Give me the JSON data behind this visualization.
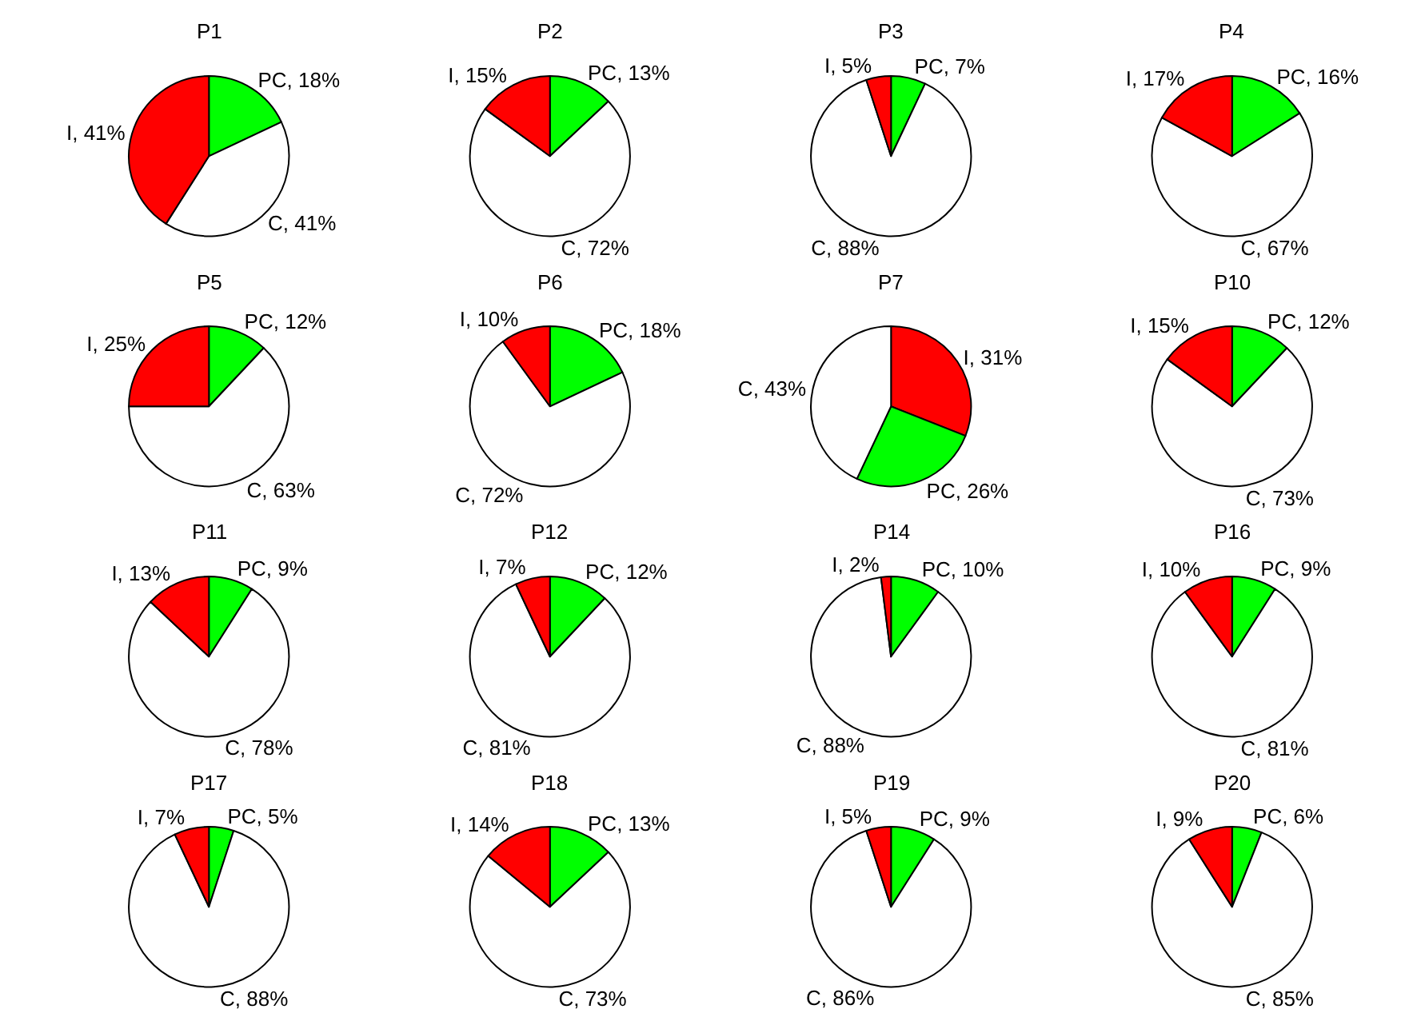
{
  "chart_data": [
    {
      "type": "pie",
      "title": "P1",
      "categories": [
        "PC",
        "C",
        "I"
      ],
      "values": [
        18,
        41,
        41
      ],
      "value_labels": [
        "18%",
        "41%",
        "41%"
      ],
      "colors": [
        "#00ff00",
        "#ffffff",
        "#ff0000"
      ]
    },
    {
      "type": "pie",
      "title": "P2",
      "categories": [
        "PC",
        "C",
        "I"
      ],
      "values": [
        13,
        72,
        15
      ],
      "value_labels": [
        "13%",
        "72%",
        "15%"
      ],
      "colors": [
        "#00ff00",
        "#ffffff",
        "#ff0000"
      ]
    },
    {
      "type": "pie",
      "title": "P3",
      "categories": [
        "PC",
        "C",
        "I"
      ],
      "values": [
        7,
        88,
        5
      ],
      "value_labels": [
        "7%",
        "88%",
        "5%"
      ],
      "colors": [
        "#00ff00",
        "#ffffff",
        "#ff0000"
      ]
    },
    {
      "type": "pie",
      "title": "P4",
      "categories": [
        "PC",
        "C",
        "I"
      ],
      "values": [
        16,
        67,
        17
      ],
      "value_labels": [
        "16%",
        "67%",
        "17%"
      ],
      "colors": [
        "#00ff00",
        "#ffffff",
        "#ff0000"
      ]
    },
    {
      "type": "pie",
      "title": "P5",
      "categories": [
        "PC",
        "C",
        "I"
      ],
      "values": [
        12,
        63,
        25
      ],
      "value_labels": [
        "12%",
        "63%",
        "25%"
      ],
      "colors": [
        "#00ff00",
        "#ffffff",
        "#ff0000"
      ]
    },
    {
      "type": "pie",
      "title": "P6",
      "categories": [
        "PC",
        "C",
        "I"
      ],
      "values": [
        18,
        72,
        10
      ],
      "value_labels": [
        "18%",
        "72%",
        "10%"
      ],
      "colors": [
        "#00ff00",
        "#ffffff",
        "#ff0000"
      ]
    },
    {
      "type": "pie",
      "title": "P7",
      "categories": [
        "I",
        "PC",
        "C"
      ],
      "values": [
        31,
        26,
        43
      ],
      "value_labels": [
        "31%",
        "26%",
        "43%"
      ],
      "colors": [
        "#ff0000",
        "#00ff00",
        "#ffffff"
      ]
    },
    {
      "type": "pie",
      "title": "P10",
      "categories": [
        "PC",
        "C",
        "I"
      ],
      "values": [
        12,
        73,
        15
      ],
      "value_labels": [
        "12%",
        "73%",
        "15%"
      ],
      "colors": [
        "#00ff00",
        "#ffffff",
        "#ff0000"
      ]
    },
    {
      "type": "pie",
      "title": "P11",
      "categories": [
        "PC",
        "C",
        "I"
      ],
      "values": [
        9,
        78,
        13
      ],
      "value_labels": [
        "9%",
        "78%",
        "13%"
      ],
      "colors": [
        "#00ff00",
        "#ffffff",
        "#ff0000"
      ]
    },
    {
      "type": "pie",
      "title": "P12",
      "categories": [
        "PC",
        "C",
        "I"
      ],
      "values": [
        12,
        81,
        7
      ],
      "value_labels": [
        "12%",
        "81%",
        "7%"
      ],
      "colors": [
        "#00ff00",
        "#ffffff",
        "#ff0000"
      ]
    },
    {
      "type": "pie",
      "title": "P14",
      "categories": [
        "PC",
        "C",
        "I"
      ],
      "values": [
        10,
        88,
        2
      ],
      "value_labels": [
        "10%",
        "88%",
        "2%"
      ],
      "colors": [
        "#00ff00",
        "#ffffff",
        "#ff0000"
      ]
    },
    {
      "type": "pie",
      "title": "P16",
      "categories": [
        "PC",
        "C",
        "I"
      ],
      "values": [
        9,
        81,
        10
      ],
      "value_labels": [
        "9%",
        "81%",
        "10%"
      ],
      "colors": [
        "#00ff00",
        "#ffffff",
        "#ff0000"
      ]
    },
    {
      "type": "pie",
      "title": "P17",
      "categories": [
        "PC",
        "C",
        "I"
      ],
      "values": [
        5,
        88,
        7
      ],
      "value_labels": [
        "5%",
        "88%",
        "7%"
      ],
      "colors": [
        "#00ff00",
        "#ffffff",
        "#ff0000"
      ]
    },
    {
      "type": "pie",
      "title": "P18",
      "categories": [
        "PC",
        "C",
        "I"
      ],
      "values": [
        13,
        73,
        14
      ],
      "value_labels": [
        "13%",
        "73%",
        "14%"
      ],
      "colors": [
        "#00ff00",
        "#ffffff",
        "#ff0000"
      ]
    },
    {
      "type": "pie",
      "title": "P19",
      "categories": [
        "PC",
        "C",
        "I"
      ],
      "values": [
        9,
        86,
        5
      ],
      "value_labels": [
        "9%",
        "86%",
        "5%"
      ],
      "colors": [
        "#00ff00",
        "#ffffff",
        "#ff0000"
      ]
    },
    {
      "type": "pie",
      "title": "P20",
      "categories": [
        "PC",
        "C",
        "I"
      ],
      "values": [
        6,
        85,
        9
      ],
      "value_labels": [
        "6%",
        "85%",
        "9%"
      ],
      "colors": [
        "#00ff00",
        "#ffffff",
        "#ff0000"
      ]
    }
  ]
}
